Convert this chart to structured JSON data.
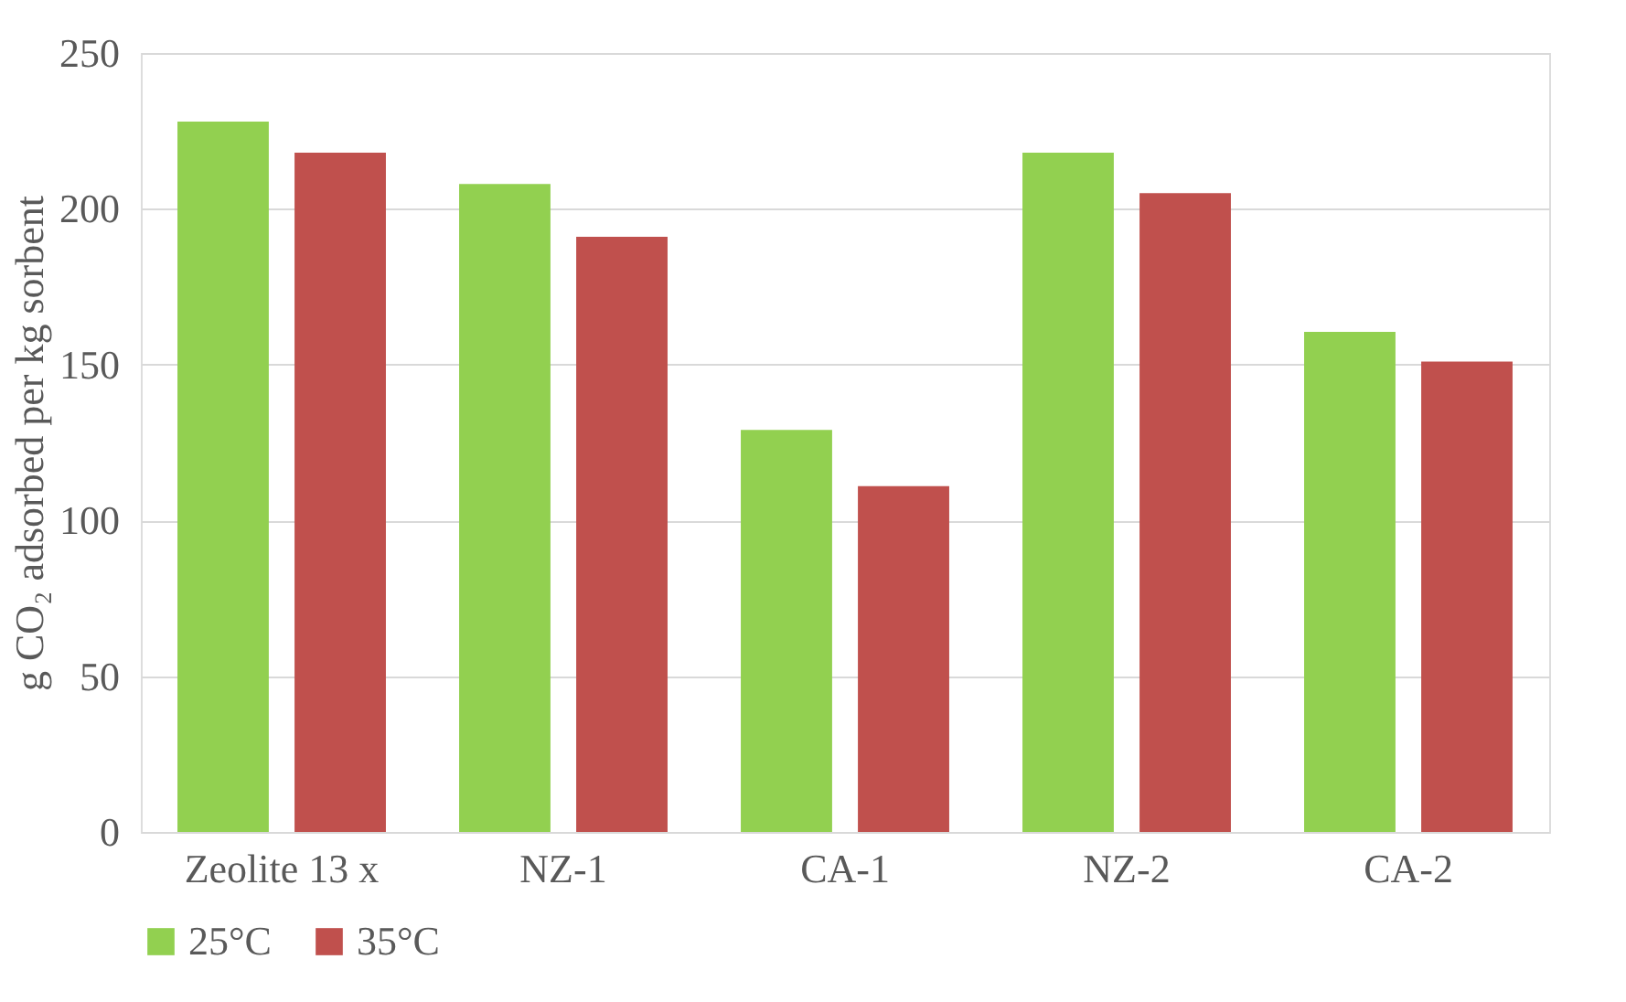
{
  "chart_data": {
    "type": "bar",
    "ylabel": "g CO₂ adsorbed per kg sorbent",
    "categories": [
      "Zeolite 13 x",
      "NZ-1",
      "CA-1",
      "NZ-2",
      "CA-2"
    ],
    "series": [
      {
        "name": "25°C",
        "color": "#92d050",
        "values": [
          228,
          208,
          129,
          218,
          160.5
        ]
      },
      {
        "name": "35°C",
        "color": "#c0504d",
        "values": [
          218,
          191,
          111,
          205,
          151
        ]
      }
    ],
    "ylim": [
      0,
      250
    ],
    "yticks": [
      0,
      50,
      100,
      150,
      200,
      250
    ],
    "grid": "y",
    "legend": "bottom"
  }
}
